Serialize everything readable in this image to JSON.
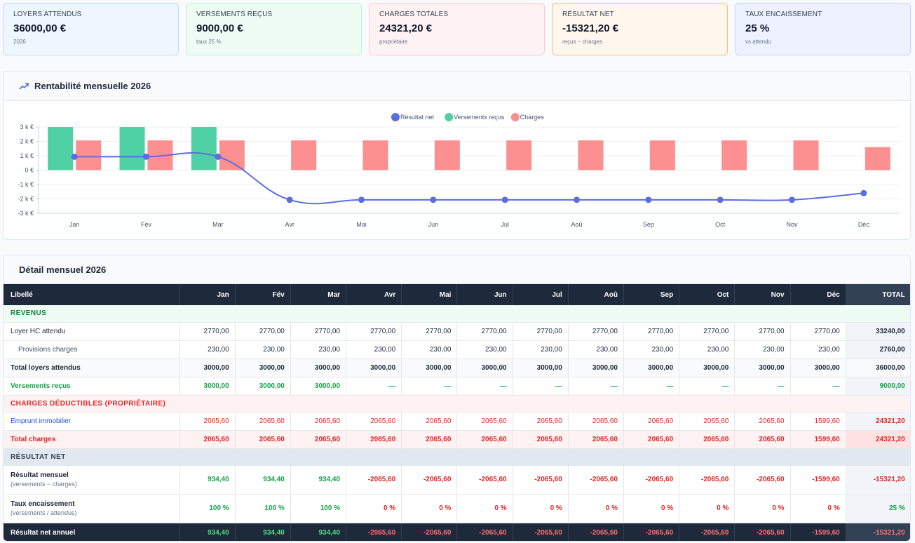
{
  "kpis": [
    {
      "label": "LOYERS ATTENDUS",
      "value": "36000,00 €",
      "sub": "2026"
    },
    {
      "label": "VERSEMENTS REÇUS",
      "value": "9000,00 €",
      "sub": "taux 25 %"
    },
    {
      "label": "CHARGES TOTALES",
      "value": "24321,20 €",
      "sub": "propriétaire"
    },
    {
      "label": "RÉSULTAT NET",
      "value": "-15321,20 €",
      "sub": "reçus − charges"
    },
    {
      "label": "TAUX ENCAISSEMENT",
      "value": "25 %",
      "sub": "vs attendu"
    }
  ],
  "chart_section": {
    "title": "Rentabilité mensuelle 2026"
  },
  "chart_data": {
    "type": "bar",
    "categories": [
      "Jan",
      "Fév",
      "Mar",
      "Avr",
      "Mai",
      "Jun",
      "Jul",
      "Aoû",
      "Sep",
      "Oct",
      "Nov",
      "Déc"
    ],
    "series": [
      {
        "name": "Résultat net",
        "type": "line",
        "color": "#5b6ee1",
        "values": [
          934.4,
          934.4,
          934.4,
          -2065.6,
          -2065.6,
          -2065.6,
          -2065.6,
          -2065.6,
          -2065.6,
          -2065.6,
          -2065.6,
          -1599.6
        ]
      },
      {
        "name": "Versements reçus",
        "type": "bar",
        "color": "#4fd1a5",
        "values": [
          3000,
          3000,
          3000,
          0,
          0,
          0,
          0,
          0,
          0,
          0,
          0,
          0
        ]
      },
      {
        "name": "Charges",
        "type": "bar",
        "color": "#fc8f8f",
        "values": [
          2065.6,
          2065.6,
          2065.6,
          2065.6,
          2065.6,
          2065.6,
          2065.6,
          2065.6,
          2065.6,
          2065.6,
          2065.6,
          1599.6
        ]
      }
    ],
    "yticks": [
      "3 k €",
      "2 k €",
      "1 k €",
      "0 €",
      "-1 k €",
      "-2 k €",
      "-3 k €"
    ],
    "ylim": [
      -3000,
      3000
    ],
    "legend": "top-center",
    "grid": true
  },
  "table": {
    "title": "Détail mensuel 2026",
    "headers": [
      "Libellé",
      "Jan",
      "Fév",
      "Mar",
      "Avr",
      "Mai",
      "Jun",
      "Jul",
      "Aoû",
      "Sep",
      "Oct",
      "Nov",
      "Déc",
      "TOTAL"
    ],
    "sec_revenus": "REVENUS",
    "sec_charges": "CHARGES DÉDUCTIBLES (PROPRIÉTAIRE)",
    "sec_resultat": "RÉSULTAT NET",
    "rows": {
      "loyer": {
        "label": "Loyer HC attendu",
        "cells": [
          "2770,00",
          "2770,00",
          "2770,00",
          "2770,00",
          "2770,00",
          "2770,00",
          "2770,00",
          "2770,00",
          "2770,00",
          "2770,00",
          "2770,00",
          "2770,00",
          "33240,00"
        ]
      },
      "provisions": {
        "label": "Provisions charges",
        "cells": [
          "230,00",
          "230,00",
          "230,00",
          "230,00",
          "230,00",
          "230,00",
          "230,00",
          "230,00",
          "230,00",
          "230,00",
          "230,00",
          "230,00",
          "2760,00"
        ]
      },
      "total_loyers": {
        "label": "Total loyers attendus",
        "cells": [
          "3000,00",
          "3000,00",
          "3000,00",
          "3000,00",
          "3000,00",
          "3000,00",
          "3000,00",
          "3000,00",
          "3000,00",
          "3000,00",
          "3000,00",
          "3000,00",
          "36000,00"
        ]
      },
      "versements": {
        "label": "Versements reçus",
        "cells": [
          "3000,00",
          "3000,00",
          "3000,00",
          "—",
          "—",
          "—",
          "—",
          "—",
          "—",
          "—",
          "—",
          "—",
          "9000,00"
        ]
      },
      "emprunt": {
        "label": "Emprunt immobilier",
        "cells": [
          "2065,60",
          "2065,60",
          "2065,60",
          "2065,60",
          "2065,60",
          "2065,60",
          "2065,60",
          "2065,60",
          "2065,60",
          "2065,60",
          "2065,60",
          "1599,60",
          "24321,20"
        ]
      },
      "total_charges": {
        "label": "Total charges",
        "cells": [
          "2065,60",
          "2065,60",
          "2065,60",
          "2065,60",
          "2065,60",
          "2065,60",
          "2065,60",
          "2065,60",
          "2065,60",
          "2065,60",
          "2065,60",
          "1599,60",
          "24321,20"
        ]
      },
      "resultat_mensuel": {
        "label": "Résultat mensuel",
        "sub": "(versements − charges)",
        "cells": [
          "934,40",
          "934,40",
          "934,40",
          "-2065,60",
          "-2065,60",
          "-2065,60",
          "-2065,60",
          "-2065,60",
          "-2065,60",
          "-2065,60",
          "-2065,60",
          "-1599,60",
          "-15321,20"
        ]
      },
      "taux": {
        "label": "Taux encaissement",
        "sub": "(versements / attendus)",
        "cells": [
          "100 %",
          "100 %",
          "100 %",
          "0 %",
          "0 %",
          "0 %",
          "0 %",
          "0 %",
          "0 %",
          "0 %",
          "0 %",
          "0 %",
          "25 %"
        ]
      },
      "annuel": {
        "label": "Résultat net annuel",
        "cells": [
          "934,40",
          "934,40",
          "934,40",
          "-2065,60",
          "-2065,60",
          "-2065,60",
          "-2065,60",
          "-2065,60",
          "-2065,60",
          "-2065,60",
          "-2065,60",
          "-1599,60",
          "-15321,20"
        ]
      }
    }
  }
}
